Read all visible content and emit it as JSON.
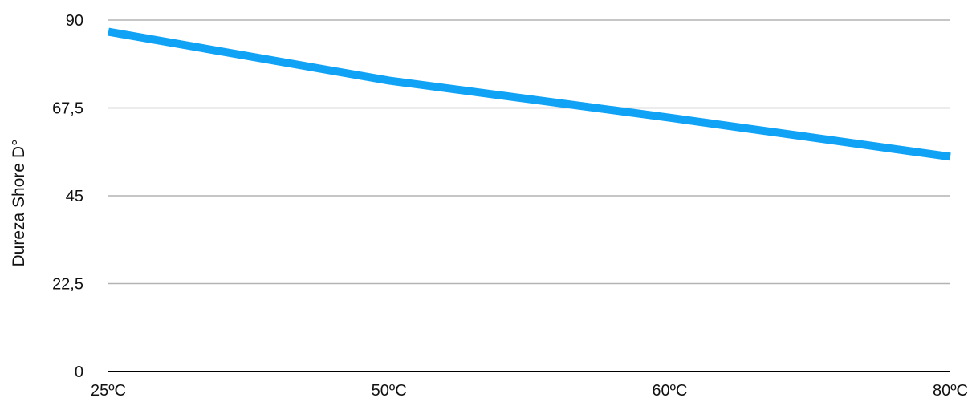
{
  "chart_data": {
    "type": "line",
    "title": "",
    "xlabel": "",
    "ylabel": "Dureza Shore D°",
    "categories": [
      "25ºC",
      "50ºC",
      "60ºC",
      "80ºC"
    ],
    "series": [
      {
        "values": [
          87,
          74.5,
          65,
          55
        ]
      }
    ],
    "ylim": [
      0,
      90
    ],
    "yticks": [
      0,
      22.5,
      45,
      67.5,
      90
    ],
    "ytick_labels": [
      "0",
      "22,5",
      "45",
      "67,5",
      "90"
    ],
    "grid": true,
    "legend": "none"
  },
  "colors": {
    "line": "#10A3F5",
    "grid": "#b3b3b3",
    "axis": "#000000"
  }
}
